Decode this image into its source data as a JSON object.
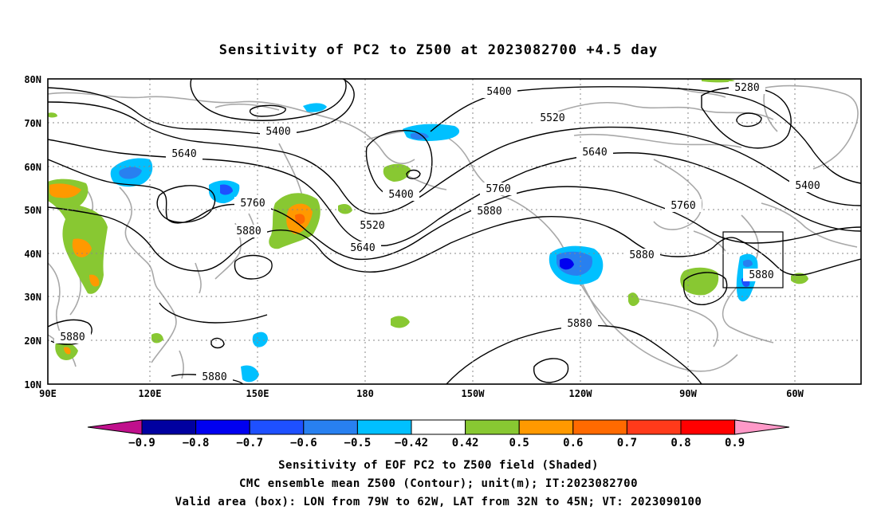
{
  "title": "Sensitivity of PC2 to Z500 at 2023082700 +4.5 day",
  "map": {
    "lat_labels": [
      "80N",
      "70N",
      "60N",
      "50N",
      "40N",
      "30N",
      "20N",
      "10N"
    ],
    "lon_labels": [
      "90E",
      "120E",
      "150E",
      "180",
      "150W",
      "120W",
      "90W",
      "60W"
    ],
    "contour_labels": [
      {
        "text": "5400",
        "name": "contour-label-5400-nw"
      },
      {
        "text": "5400",
        "name": "contour-label-5400-bering"
      },
      {
        "text": "5400",
        "name": "contour-label-5400-arctic"
      },
      {
        "text": "5280",
        "name": "contour-label-5280"
      },
      {
        "text": "5520",
        "name": "contour-label-5520-north"
      },
      {
        "text": "5640",
        "name": "contour-label-5640-west"
      },
      {
        "text": "5640",
        "name": "contour-label-5640-canada"
      },
      {
        "text": "5400",
        "name": "contour-label-5400-east"
      },
      {
        "text": "5760",
        "name": "contour-label-5760-west"
      },
      {
        "text": "5760",
        "name": "contour-label-5760-pacific"
      },
      {
        "text": "5760",
        "name": "contour-label-5760-east"
      },
      {
        "text": "5520",
        "name": "contour-label-5520-pacific"
      },
      {
        "text": "5640",
        "name": "contour-label-5640-pacific"
      },
      {
        "text": "5880",
        "name": "contour-label-5880-japan"
      },
      {
        "text": "5880",
        "name": "contour-label-5880-pacific"
      },
      {
        "text": "5880",
        "name": "contour-label-5880-usa"
      },
      {
        "text": "5880",
        "name": "contour-label-5880-box"
      },
      {
        "text": "5880",
        "name": "contour-label-5880-mexico"
      },
      {
        "text": "5880",
        "name": "contour-label-5880-india"
      },
      {
        "text": "5880",
        "name": "contour-label-5880-westpac"
      }
    ],
    "valid_box": {
      "lon_from": "79W",
      "lon_to": "62W",
      "lat_from": "32N",
      "lat_to": "45N"
    }
  },
  "colorbar": {
    "levels": [
      "-0.9",
      "-0.8",
      "-0.7",
      "-0.6",
      "-0.5",
      "-0.42",
      "0.42",
      "0.5",
      "0.6",
      "0.7",
      "0.8",
      "0.9"
    ],
    "colors": [
      "#c0108c",
      "#0000a0",
      "#0000f0",
      "#1e50ff",
      "#2880f0",
      "#00c0ff",
      "#ffffff",
      "#88c832",
      "#ff9900",
      "#ff6a00",
      "#ff3a1a",
      "#ff0000",
      "#ff99c8"
    ]
  },
  "footer": {
    "line1": "Sensitivity of EOF PC2 to Z500 field (Shaded)",
    "line2": "CMC ensemble mean Z500 (Contour); unit(m); IT:2023082700",
    "line3": "Valid area (box): LON from 79W to 62W, LAT from 32N to 45N; VT: 2023090100"
  }
}
